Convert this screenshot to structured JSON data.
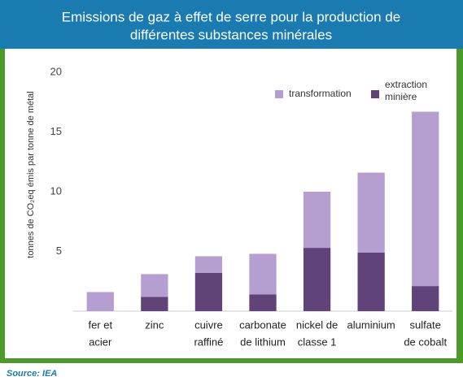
{
  "chart_data": {
    "type": "stacked_bar",
    "title": [
      "Emissions de gaz à effet de serre pour la production de",
      "différentes substances minérales"
    ],
    "y_label": "tonnes de CO₂eq émis par tonne de métal",
    "categories": [
      [
        "fer et",
        "acier"
      ],
      [
        "zinc"
      ],
      [
        "cuivre",
        "raffiné"
      ],
      [
        "carbonate",
        "de lithium"
      ],
      [
        "nickel de",
        "classe 1"
      ],
      [
        "aluminium"
      ],
      [
        "sulfate",
        "de cobalt"
      ]
    ],
    "series": [
      {
        "name": "extraction minière",
        "color": "#5f4379",
        "values": [
          0,
          1.2,
          3.2,
          1.4,
          5.3,
          4.9,
          2.1
        ]
      },
      {
        "name": "transformation",
        "color": "#b49fd0",
        "values": [
          1.6,
          1.9,
          1.4,
          3.4,
          4.7,
          6.7,
          14.6
        ]
      }
    ],
    "ylim": [
      0,
      20
    ],
    "yticks": [
      5,
      10,
      15,
      20
    ],
    "grid": false,
    "source": "Source: IEA"
  }
}
